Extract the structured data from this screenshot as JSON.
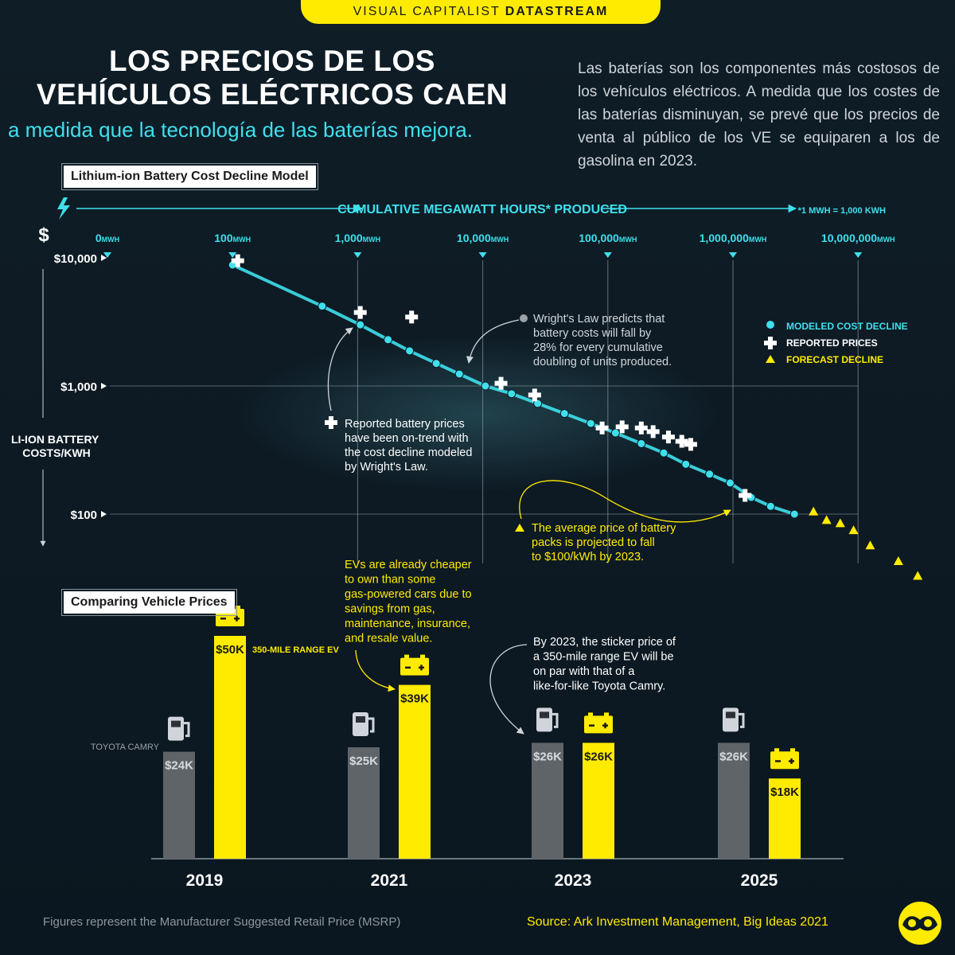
{
  "banner": {
    "brand": "VISUAL CAPITALIST",
    "product": "DATASTREAM"
  },
  "title": [
    "LOS PRECIOS DE LOS",
    "VEHÍCULOS ELÉCTRICOS CAEN"
  ],
  "subtitle": "a medida que la tecnología de las baterías mejora.",
  "intro": "Las baterías son los componentes más costosos de los vehículos eléctricos. A medida que los costes de las baterías disminuyan, se prevé que los precios de venta al público de los VE se equiparen a los de gasolina en 2023.",
  "footnote": "Figures represent the Manufacturer Suggested Retail Price (MSRP)",
  "source": "Source: Ark Investment Management, Big Ideas 2021",
  "colors": {
    "cyan": "#3ee0ec",
    "yellow": "#ffeb00",
    "gray": "#5f6468",
    "white": "#ffffff"
  },
  "chart_data": [
    {
      "type": "scatter",
      "title": "Lithium-ion Battery Cost Decline Model",
      "x_axis_title": "CUMULATIVE MEGAWATT HOURS* PRODUCED",
      "x_note": "*1 MWH = 1,000 KWH",
      "x_scale": "log",
      "x_ticks": [
        {
          "value": 10,
          "label": "0MWH"
        },
        {
          "value": 100,
          "label": "100MWH"
        },
        {
          "value": 1000,
          "label": "1,000MWH"
        },
        {
          "value": 10000,
          "label": "10,000MWH"
        },
        {
          "value": 100000,
          "label": "100,000MWH"
        },
        {
          "value": 1000000,
          "label": "1,000,000MWH"
        },
        {
          "value": 10000000,
          "label": "10,000,000MWH"
        }
      ],
      "y_axis_symbol": "$",
      "ylabel": "LI-ION BATTERY COSTS/KWH",
      "y_scale": "log",
      "y_ticks": [
        {
          "value": 10000,
          "label": "$10,000"
        },
        {
          "value": 1000,
          "label": "$1,000"
        },
        {
          "value": 100,
          "label": "$100"
        }
      ],
      "legend": [
        {
          "key": "modeled",
          "label": "MODELED COST DECLINE",
          "marker": "circle",
          "color": "#3ee0ec"
        },
        {
          "key": "reported",
          "label": "REPORTED PRICES",
          "marker": "cross",
          "color": "#ffffff"
        },
        {
          "key": "forecast",
          "label": "FORECAST DECLINE",
          "marker": "triangle",
          "color": "#ffeb00"
        }
      ],
      "legend_position": "right",
      "series": [
        {
          "key": "modeled",
          "name": "MODELED COST DECLINE",
          "points": [
            [
              100,
              8800
            ],
            [
              520,
              4200
            ],
            [
              1050,
              3000
            ],
            [
              1750,
              2300
            ],
            [
              2600,
              1880
            ],
            [
              4250,
              1500
            ],
            [
              6500,
              1240
            ],
            [
              10500,
              1000
            ],
            [
              17000,
              870
            ],
            [
              27500,
              730
            ],
            [
              45000,
              610
            ],
            [
              73000,
              510
            ],
            [
              115000,
              430
            ],
            [
              185000,
              355
            ],
            [
              280000,
              300
            ],
            [
              420000,
              245
            ],
            [
              650000,
              205
            ],
            [
              950000,
              175
            ],
            [
              1400000,
              135
            ],
            [
              2000000,
              115
            ],
            [
              3100000,
              100
            ]
          ]
        },
        {
          "key": "reported",
          "name": "REPORTED PRICES",
          "points": [
            [
              110,
              9500
            ],
            [
              1050,
              3750
            ],
            [
              2700,
              3450
            ],
            [
              14000,
              1050
            ],
            [
              26000,
              850
            ],
            [
              90000,
              470
            ],
            [
              130000,
              480
            ],
            [
              185000,
              470
            ],
            [
              230000,
              440
            ],
            [
              305000,
              400
            ],
            [
              390000,
              370
            ],
            [
              460000,
              350
            ],
            [
              1250000,
              140
            ]
          ]
        },
        {
          "key": "forecast",
          "name": "FORECAST DECLINE",
          "points": [
            [
              4400000,
              105
            ],
            [
              5600000,
              90
            ],
            [
              7200000,
              85
            ],
            [
              9200000,
              75
            ],
            [
              12500000,
              57
            ],
            [
              21000000,
              43
            ],
            [
              30000000,
              33
            ]
          ]
        }
      ],
      "annotations": [
        "Wright's Law predicts that battery costs will fall by 28% for every cumulative doubling of units produced.",
        "Reported battery prices have been on-trend with the cost decline modeled by Wright's Law.",
        "The average price of battery packs is projected to fall to $100/kWh by 2023."
      ]
    },
    {
      "type": "bar",
      "title": "Comparing Vehicle Prices",
      "categories": [
        "2019",
        "2021",
        "2023",
        "2025"
      ],
      "series": [
        {
          "key": "gas",
          "name": "TOYOTA CAMRY",
          "values": [
            24,
            25,
            26,
            26
          ],
          "labels": [
            "$24K",
            "$25K",
            "$26K",
            "$26K"
          ],
          "color": "#5f6468"
        },
        {
          "key": "ev",
          "name": "350-MILE RANGE EV",
          "values": [
            50,
            39,
            26,
            18
          ],
          "labels": [
            "$50K",
            "$39K",
            "$26K",
            "$18K"
          ],
          "color": "#ffeb00"
        }
      ],
      "unit": "$K",
      "ylim": [
        0,
        50
      ],
      "annotations": [
        "EVs are already cheaper to own than some gas-powered cars due to savings from gas, maintenance, insurance, and resale value.",
        "By 2023, the sticker price of a 350-mile range EV will be on par with that of a like-for-like Toyota Camry."
      ]
    }
  ]
}
